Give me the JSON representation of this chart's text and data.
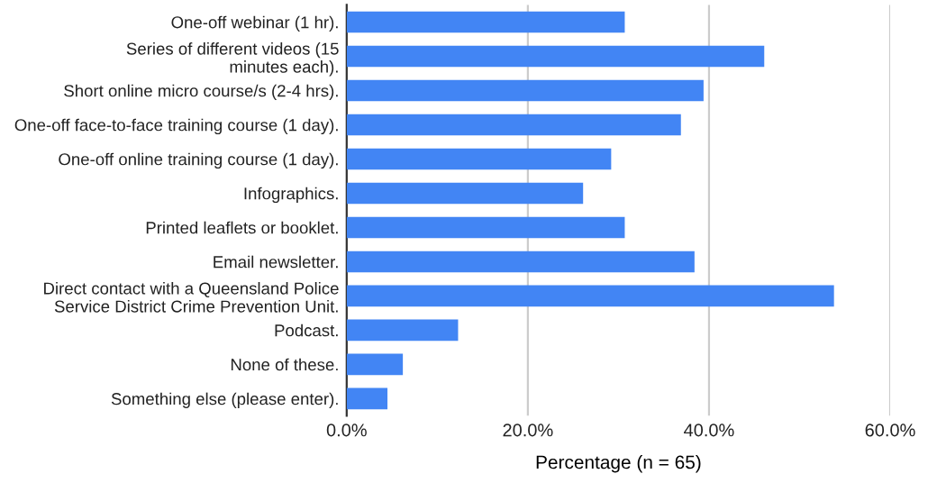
{
  "chart_data": {
    "type": "bar",
    "orientation": "horizontal",
    "xlabel": "Percentage (n = 65)",
    "categories": [
      "One-off webinar (1 hr).",
      "Series of different videos (15\nminutes each).",
      "Short online micro course/s (2-4 hrs).",
      "One-off face-to-face training course (1 day).",
      "One-off online training course (1 day).",
      "Infographics.",
      "Printed leaflets or booklet.",
      "Email newsletter.",
      "Direct contact with a Queensland Police\nService District Crime Prevention Unit.",
      "Podcast.",
      "None of these.",
      "Something else (please enter)."
    ],
    "values": [
      30.7,
      46.1,
      39.4,
      36.9,
      29.2,
      26.1,
      30.7,
      38.4,
      53.8,
      12.3,
      6.2,
      4.5
    ],
    "color": "#4285f4",
    "xlim": [
      0,
      60
    ],
    "xticks": [
      {
        "value": 0,
        "label": "0.0%"
      },
      {
        "value": 20,
        "label": "20.0%"
      },
      {
        "value": 40,
        "label": "40.0%"
      },
      {
        "value": 60,
        "label": "60.0%"
      }
    ],
    "grid": "x"
  }
}
